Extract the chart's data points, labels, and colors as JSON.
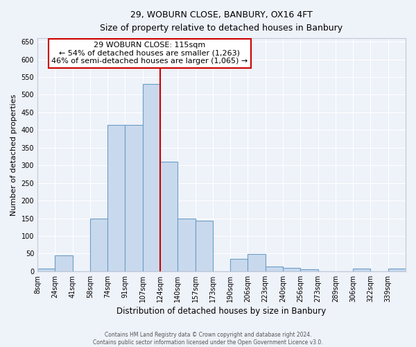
{
  "title": "29, WOBURN CLOSE, BANBURY, OX16 4FT",
  "subtitle": "Size of property relative to detached houses in Banbury",
  "xlabel": "Distribution of detached houses by size in Banbury",
  "ylabel": "Number of detached properties",
  "bin_labels": [
    "8sqm",
    "24sqm",
    "41sqm",
    "58sqm",
    "74sqm",
    "91sqm",
    "107sqm",
    "124sqm",
    "140sqm",
    "157sqm",
    "173sqm",
    "190sqm",
    "206sqm",
    "223sqm",
    "240sqm",
    "256sqm",
    "273sqm",
    "289sqm",
    "306sqm",
    "322sqm",
    "339sqm"
  ],
  "bar_heights": [
    8,
    44,
    0,
    150,
    415,
    415,
    530,
    310,
    150,
    143,
    0,
    35,
    48,
    14,
    10,
    5,
    0,
    0,
    8,
    0,
    8
  ],
  "bar_color": "#c9d9ed",
  "bar_edge_color": "#6b9ec8",
  "marker_line_color": "#cc0000",
  "annotation_title": "29 WOBURN CLOSE: 115sqm",
  "annotation_line1": "← 54% of detached houses are smaller (1,263)",
  "annotation_line2": "46% of semi-detached houses are larger (1,065) →",
  "annotation_box_edge_color": "#cc0000",
  "ylim": [
    0,
    660
  ],
  "yticks": [
    0,
    50,
    100,
    150,
    200,
    250,
    300,
    350,
    400,
    450,
    500,
    550,
    600,
    650
  ],
  "footer_line1": "Contains HM Land Registry data © Crown copyright and database right 2024.",
  "footer_line2": "Contains public sector information licensed under the Open Government Licence v3.0.",
  "bg_color": "#eef2f9",
  "plot_bg_color": "#eef2f9",
  "grid_color": "#ffffff",
  "spine_color": "#c0c8d8"
}
